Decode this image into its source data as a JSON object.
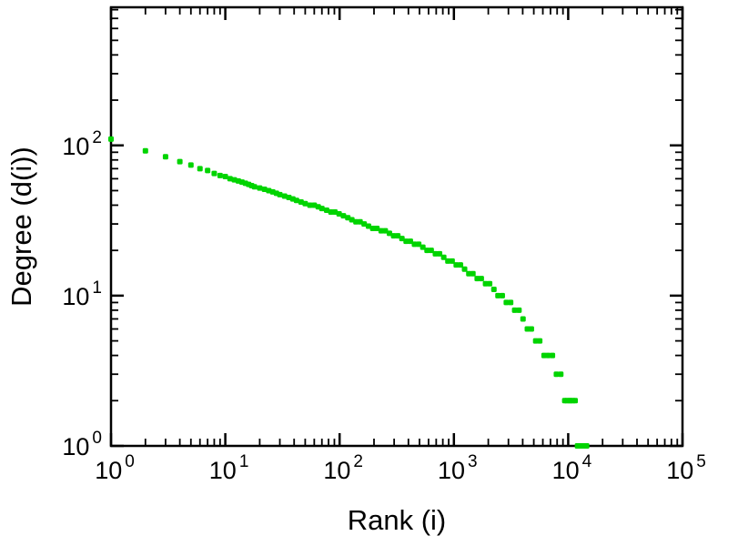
{
  "page": {
    "background": "#ffffff"
  },
  "chart_data": {
    "type": "scatter",
    "title": "",
    "xlabel": "Rank (i)",
    "ylabel": "Degree (d(i))",
    "x_scale": "log",
    "y_scale": "log",
    "xlim": [
      1,
      100000
    ],
    "ylim": [
      1,
      830
    ],
    "x_major_tick_exponents": [
      0,
      1,
      2,
      3,
      4,
      5
    ],
    "y_major_tick_exponents": [
      0,
      1,
      2
    ],
    "tick_label_base": "10",
    "grid": "off",
    "legend": "none",
    "point_color": "#00d400",
    "axis_color": "#000000",
    "points": [
      [
        1,
        110
      ],
      [
        2,
        92
      ],
      [
        3,
        84
      ],
      [
        4,
        78
      ],
      [
        5,
        74
      ],
      [
        6,
        70
      ],
      [
        7,
        68
      ],
      [
        8,
        65
      ],
      [
        9,
        63
      ],
      [
        10,
        62
      ],
      [
        11,
        60
      ],
      [
        12,
        59
      ],
      [
        13,
        58
      ],
      [
        14,
        57
      ],
      [
        15,
        56
      ],
      [
        16,
        55
      ],
      [
        17,
        54
      ],
      [
        18,
        53
      ],
      [
        20,
        52
      ],
      [
        22,
        51
      ],
      [
        24,
        50
      ],
      [
        26,
        49
      ],
      [
        28,
        48
      ],
      [
        30,
        47
      ],
      [
        33,
        46
      ],
      [
        36,
        45
      ],
      [
        39,
        44
      ],
      [
        42,
        43
      ],
      [
        46,
        42
      ],
      [
        50,
        41
      ],
      [
        55,
        40
      ],
      [
        60,
        40
      ],
      [
        65,
        39
      ],
      [
        70,
        38
      ],
      [
        77,
        37
      ],
      [
        84,
        36
      ],
      [
        91,
        36
      ],
      [
        99,
        35
      ],
      [
        108,
        34
      ],
      [
        118,
        33
      ],
      [
        128,
        32
      ],
      [
        139,
        31
      ],
      [
        151,
        31
      ],
      [
        164,
        30
      ],
      [
        179,
        29
      ],
      [
        195,
        28
      ],
      [
        212,
        28
      ],
      [
        231,
        27
      ],
      [
        251,
        27
      ],
      [
        273,
        26
      ],
      [
        297,
        25
      ],
      [
        323,
        25
      ],
      [
        351,
        24
      ],
      [
        382,
        23
      ],
      [
        416,
        23
      ],
      [
        452,
        22
      ],
      [
        492,
        22
      ],
      [
        535,
        21
      ],
      [
        582,
        20
      ],
      [
        633,
        20
      ],
      [
        689,
        19
      ],
      [
        749,
        19
      ],
      [
        815,
        18
      ],
      [
        886,
        17
      ],
      [
        965,
        17
      ],
      [
        1048,
        16
      ],
      [
        1142,
        16
      ],
      [
        1240,
        15
      ],
      [
        1351,
        14
      ],
      [
        1467,
        14
      ],
      [
        1599,
        13
      ],
      [
        1736,
        13
      ],
      [
        1892,
        12
      ],
      [
        2054,
        12
      ],
      [
        2239,
        11
      ],
      [
        2430,
        10
      ],
      [
        2650,
        10
      ],
      [
        2875,
        9
      ],
      [
        3136,
        9
      ],
      [
        3402,
        8
      ],
      [
        3711,
        8
      ],
      [
        4025,
        7
      ],
      [
        4392,
        6
      ],
      [
        4762,
        6
      ],
      [
        5197,
        5
      ],
      [
        5634,
        5
      ],
      [
        6151,
        4
      ],
      [
        6666,
        4
      ],
      [
        7279,
        4
      ],
      [
        7887,
        3
      ],
      [
        8614,
        3
      ],
      [
        9331,
        2
      ],
      [
        9700,
        2
      ],
      [
        10194,
        2
      ],
      [
        10500,
        2
      ],
      [
        11000,
        2
      ],
      [
        11500,
        2
      ],
      [
        12064,
        1
      ],
      [
        12500,
        1
      ],
      [
        12800,
        1
      ],
      [
        13000,
        1
      ],
      [
        13300,
        1
      ],
      [
        13500,
        1
      ],
      [
        14000,
        1
      ],
      [
        14500,
        1
      ]
    ]
  }
}
